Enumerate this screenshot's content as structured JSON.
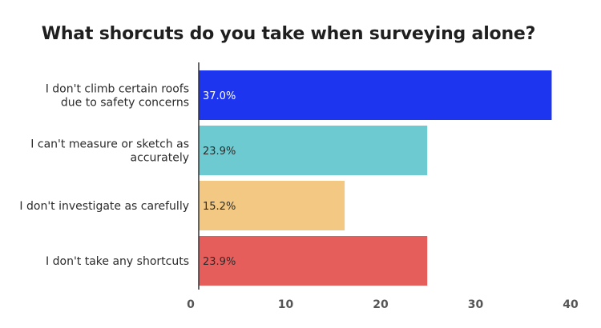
{
  "chart_data": {
    "type": "bar",
    "orientation": "horizontal",
    "title": "What shorcuts do you take when surveying alone?",
    "categories": [
      [
        "I don't climb certain roofs",
        "due to safety concerns"
      ],
      [
        "I can't measure or sketch as",
        "accurately"
      ],
      [
        "I don't investigate as carefully"
      ],
      [
        "I don't take any shortcuts"
      ]
    ],
    "values": [
      37.0,
      23.9,
      15.2,
      23.9
    ],
    "value_labels": [
      "37.0%",
      "23.9%",
      "15.2%",
      "23.9%"
    ],
    "colors": [
      "#1e35f0",
      "#6ccad0",
      "#f2c882",
      "#e65e5c"
    ],
    "value_label_colors": [
      "#ffffff",
      "#2b2b2b",
      "#2b2b2b",
      "#2b2b2b"
    ],
    "xlim": [
      0,
      40
    ],
    "xticks": [
      "0",
      "10",
      "20",
      "30",
      "40"
    ],
    "xlabel": "",
    "ylabel": "",
    "grid": false,
    "legend": "none"
  }
}
